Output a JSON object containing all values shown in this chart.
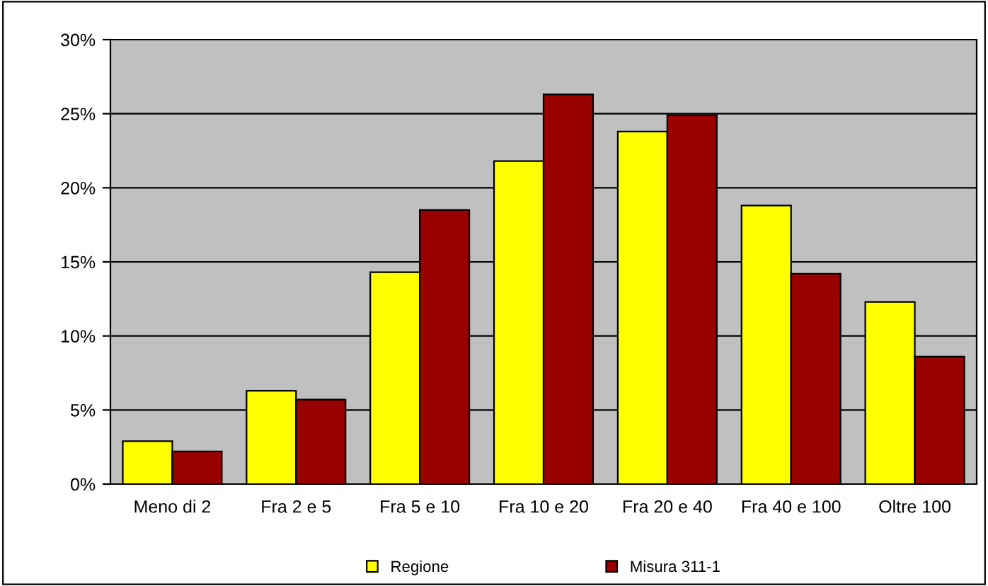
{
  "chart_data": {
    "type": "bar",
    "categories": [
      "Meno di 2",
      "Fra 2 e 5",
      "Fra 5 e 10",
      "Fra 10 e 20",
      "Fra 20 e 40",
      "Fra 40 e 100",
      "Oltre 100"
    ],
    "series": [
      {
        "name": "Regione",
        "color": "#ffff00",
        "values": [
          2.9,
          6.3,
          14.3,
          21.8,
          23.8,
          18.8,
          12.3
        ]
      },
      {
        "name": "Misura 311-1",
        "color": "#990000",
        "values": [
          2.2,
          5.7,
          18.5,
          26.3,
          24.9,
          14.2,
          8.6
        ]
      }
    ],
    "ylim": [
      0,
      30
    ],
    "yticks": [
      {
        "value": 0,
        "label": "0%"
      },
      {
        "value": 5,
        "label": "5%"
      },
      {
        "value": 10,
        "label": "10%"
      },
      {
        "value": 15,
        "label": "15%"
      },
      {
        "value": 20,
        "label": "20%"
      },
      {
        "value": 25,
        "label": "25%"
      },
      {
        "value": 30,
        "label": "30%"
      }
    ],
    "grid": "y",
    "legend": "bottom"
  }
}
